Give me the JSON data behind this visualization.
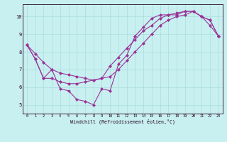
{
  "xlabel": "Windchill (Refroidissement éolien,°C)",
  "bg_color": "#c8f0f0",
  "line_color": "#993399",
  "grid_color": "#aadddd",
  "xlim": [
    -0.5,
    23.5
  ],
  "ylim": [
    4.5,
    10.7
  ],
  "xtick_labels": [
    "0",
    "1",
    "2",
    "3",
    "4",
    "5",
    "6",
    "7",
    "8",
    "9",
    "10",
    "11",
    "12",
    "13",
    "14",
    "15",
    "16",
    "17",
    "18",
    "19",
    "20",
    "21",
    "22",
    "23"
  ],
  "ytick_vals": [
    5,
    6,
    7,
    8,
    9,
    10
  ],
  "line1_x": [
    0,
    1,
    2,
    3,
    4,
    5,
    6,
    7,
    8,
    9,
    10,
    11,
    12,
    13,
    14,
    15,
    16,
    17,
    18,
    19,
    20,
    21,
    22,
    23
  ],
  "line1_y": [
    8.4,
    7.6,
    6.5,
    7.0,
    5.9,
    5.8,
    5.3,
    5.2,
    5.0,
    5.9,
    5.8,
    7.3,
    7.8,
    8.9,
    9.4,
    9.9,
    10.1,
    10.1,
    10.2,
    10.3,
    10.3,
    10.0,
    9.8,
    8.9
  ],
  "line2_x": [
    0,
    1,
    2,
    3,
    4,
    5,
    6,
    7,
    8,
    9,
    10,
    11,
    12,
    13,
    14,
    15,
    16,
    17,
    18,
    19,
    20,
    21,
    22,
    23
  ],
  "line2_y": [
    8.4,
    7.6,
    6.5,
    6.5,
    6.3,
    6.2,
    6.2,
    6.3,
    6.4,
    6.5,
    6.6,
    7.0,
    7.5,
    8.0,
    8.5,
    9.0,
    9.5,
    9.8,
    10.0,
    10.1,
    10.3,
    10.0,
    9.5,
    8.9
  ],
  "line3_x": [
    0,
    1,
    2,
    3,
    4,
    5,
    6,
    7,
    8,
    9,
    10,
    11,
    12,
    13,
    14,
    15,
    16,
    17,
    18,
    19,
    20,
    21,
    22,
    23
  ],
  "line3_y": [
    8.4,
    7.9,
    7.4,
    7.0,
    6.8,
    6.7,
    6.6,
    6.5,
    6.4,
    6.5,
    7.2,
    7.7,
    8.2,
    8.7,
    9.2,
    9.5,
    9.9,
    10.1,
    10.1,
    10.3,
    10.3,
    10.0,
    9.8,
    8.9
  ]
}
